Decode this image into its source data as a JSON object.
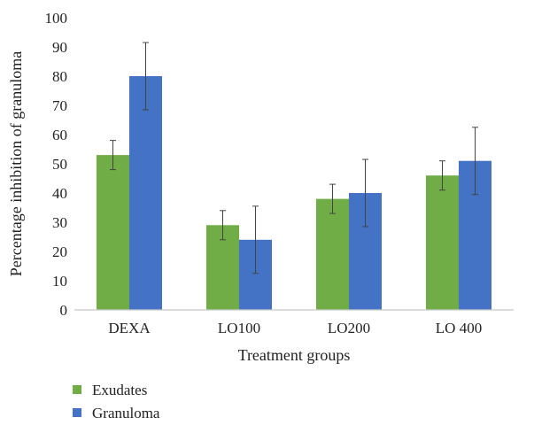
{
  "chart_data": {
    "type": "bar",
    "title": "",
    "xlabel": "Treatment groups",
    "ylabel": "Percentage inhibition of granuloma",
    "categories": [
      "DEXA",
      "LO100",
      "LO200",
      "LO 400"
    ],
    "ylim": [
      0,
      100
    ],
    "yticks": [
      0,
      10,
      20,
      30,
      40,
      50,
      60,
      70,
      80,
      90,
      100
    ],
    "grid": false,
    "legend_position": "bottom-left",
    "series": [
      {
        "name": "Exudates",
        "color": "#70ad47",
        "values": [
          53,
          29,
          38,
          46
        ],
        "errors": [
          5,
          5,
          5,
          5
        ]
      },
      {
        "name": "Granuloma",
        "color": "#4472c4",
        "values": [
          80,
          24,
          40,
          51
        ],
        "errors": [
          11.5,
          11.5,
          11.5,
          11.5
        ]
      }
    ]
  }
}
